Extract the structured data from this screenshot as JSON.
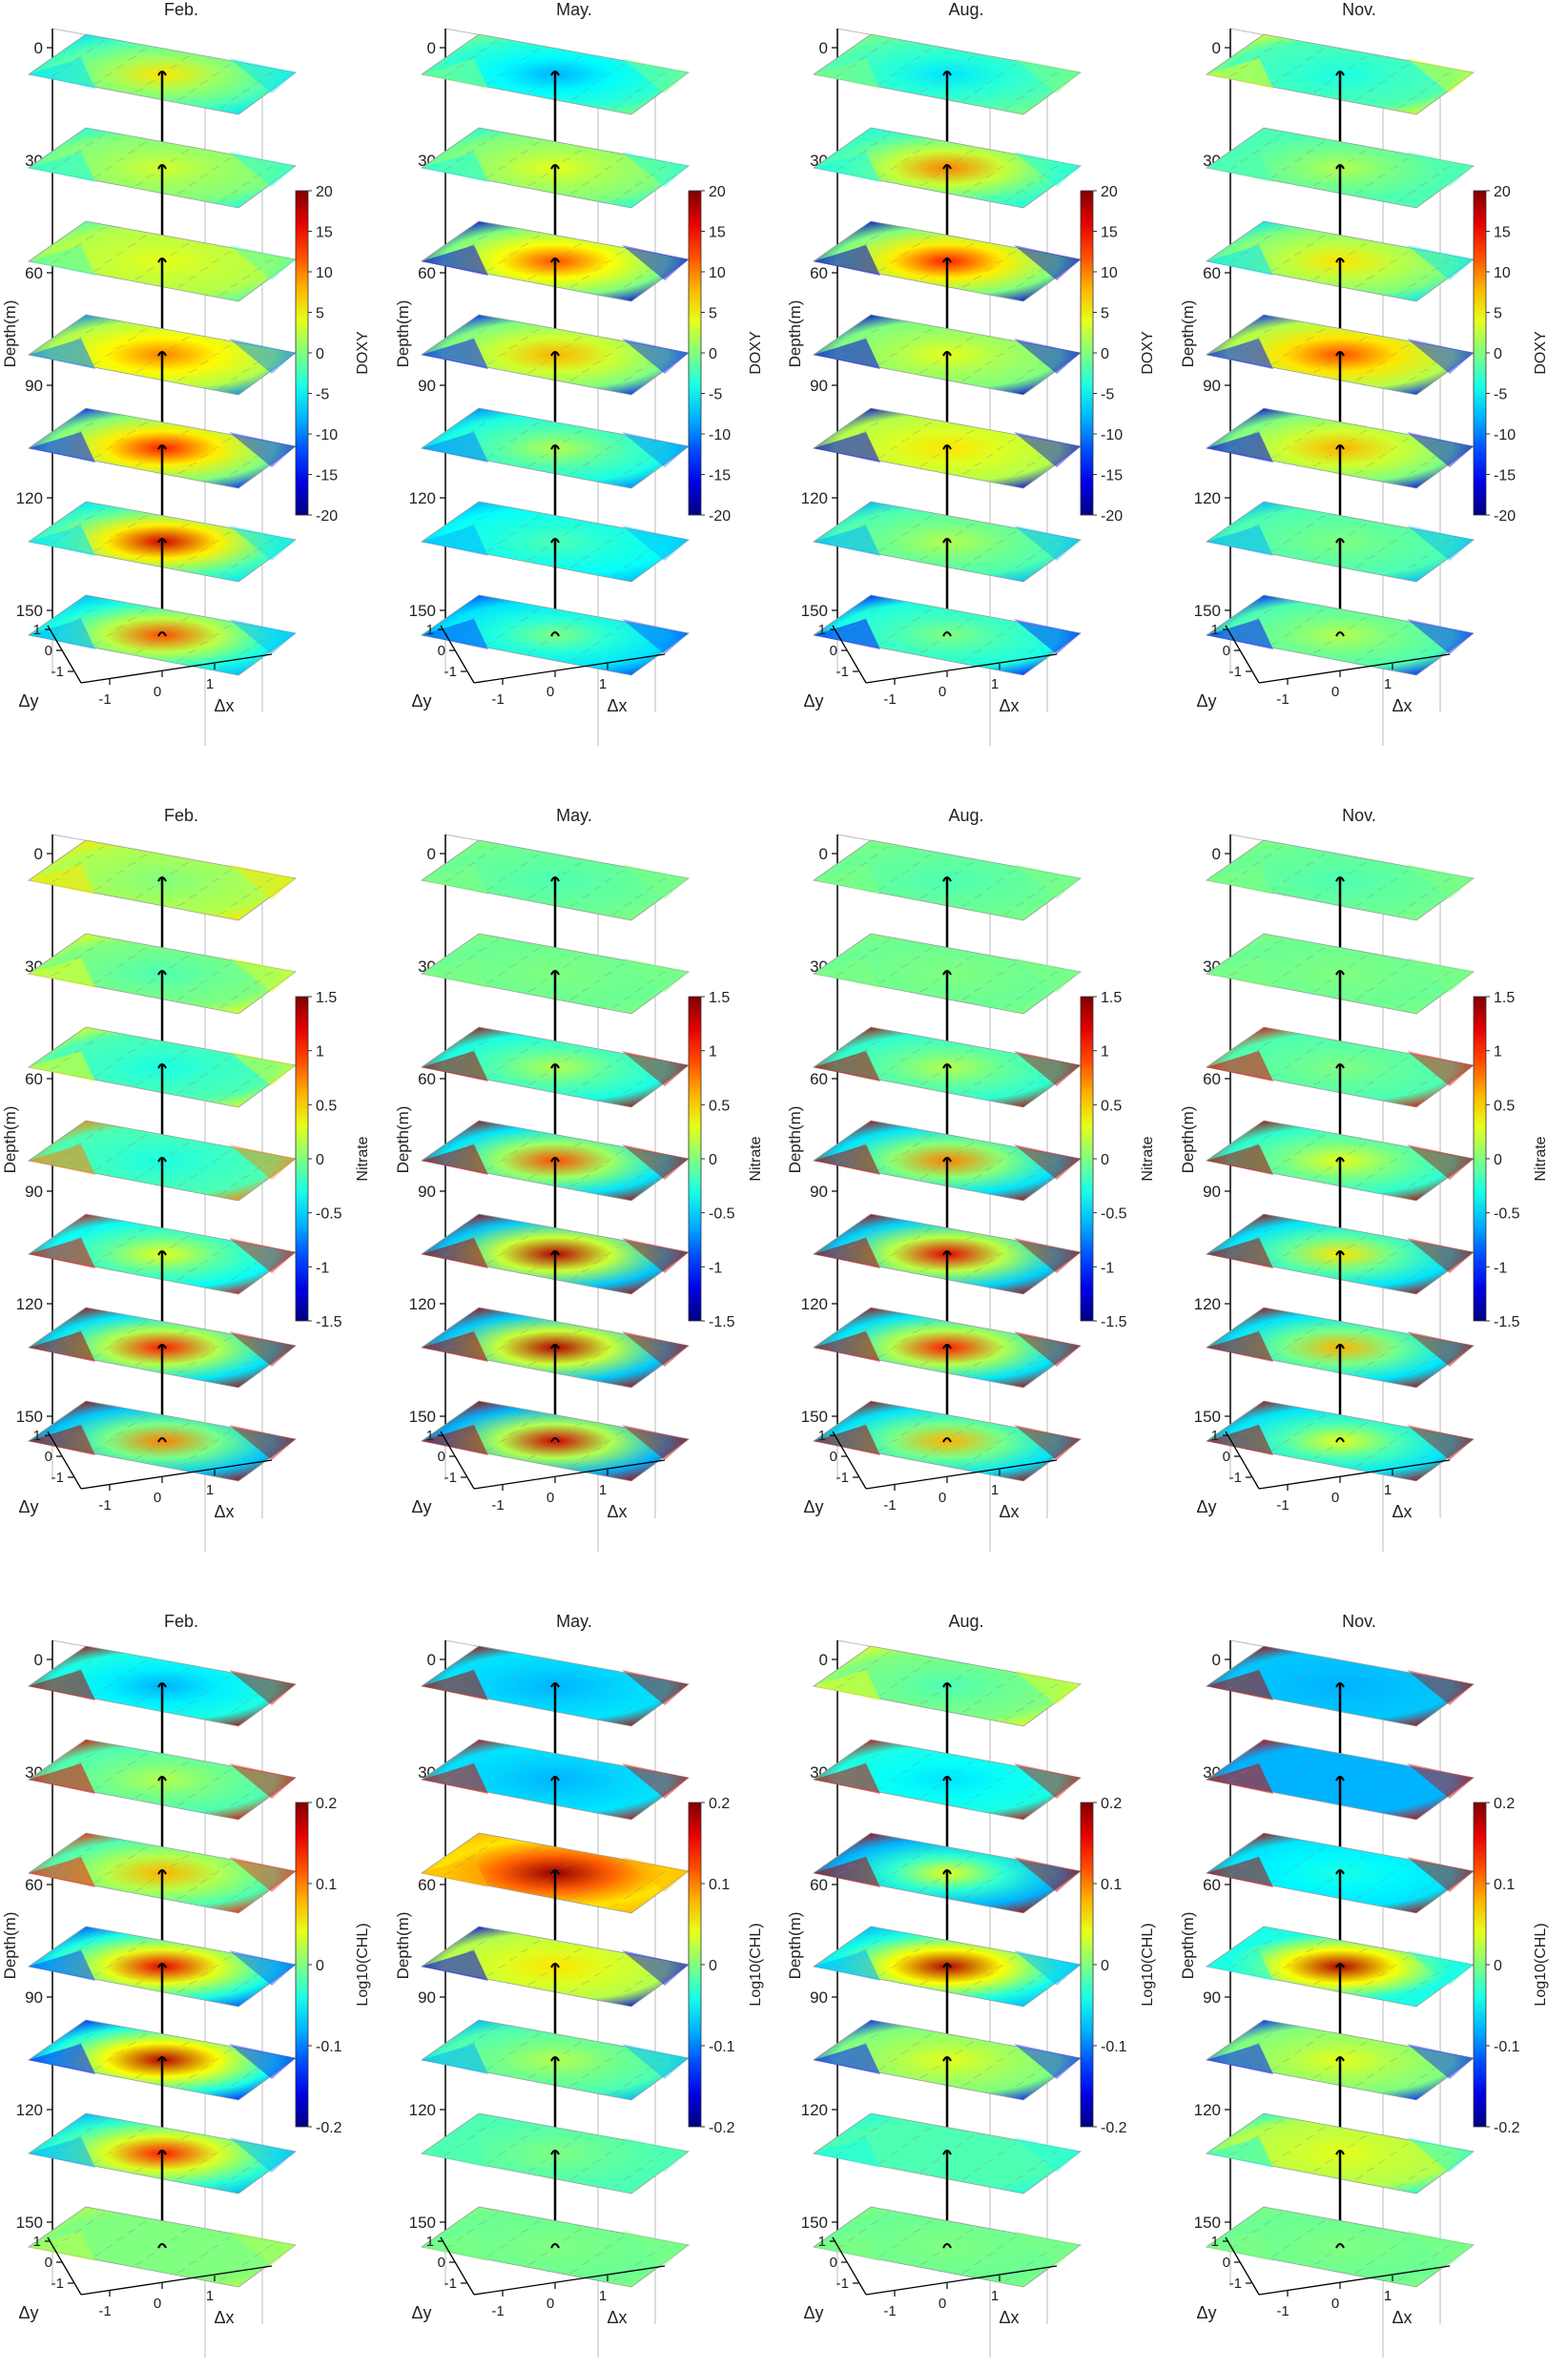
{
  "figure": {
    "rows": [
      {
        "variable": "DOXY",
        "colorbar": {
          "ticks": [
            "20",
            "15",
            "10",
            "5",
            "0",
            "-5",
            "-10",
            "-15",
            "-20"
          ],
          "range": [
            -20,
            20
          ]
        },
        "panels": [
          {
            "title": "Feb.",
            "layers": [
              {
                "bg": 0.45,
                "center": 0.65,
                "rim": 0.35,
                "sw": 0.1
              },
              {
                "bg": 0.5,
                "center": 0.58,
                "rim": 0.4,
                "sw": 0.15
              },
              {
                "bg": 0.55,
                "center": 0.6,
                "rim": 0.45,
                "sw": 0.2
              },
              {
                "bg": 0.55,
                "center": 0.75,
                "rim": 0.25,
                "sw": 0.3
              },
              {
                "bg": 0.5,
                "center": 0.85,
                "rim": 0.15,
                "sw": 0.5
              },
              {
                "bg": 0.45,
                "center": 0.92,
                "rim": 0.35,
                "sw": 0.2
              },
              {
                "bg": 0.4,
                "center": 0.8,
                "rim": 0.3,
                "sw": 0.1
              }
            ]
          },
          {
            "title": "May.",
            "layers": [
              {
                "bg": 0.42,
                "center": 0.3,
                "rim": 0.5,
                "sw": 0.1
              },
              {
                "bg": 0.5,
                "center": 0.6,
                "rim": 0.4,
                "sw": 0.1
              },
              {
                "bg": 0.5,
                "center": 0.8,
                "rim": 0.1,
                "sw": 0.6
              },
              {
                "bg": 0.5,
                "center": 0.7,
                "rim": 0.15,
                "sw": 0.5
              },
              {
                "bg": 0.4,
                "center": 0.55,
                "rim": 0.25,
                "sw": 0.3
              },
              {
                "bg": 0.38,
                "center": 0.45,
                "rim": 0.3,
                "sw": 0.3
              },
              {
                "bg": 0.35,
                "center": 0.5,
                "rim": 0.2,
                "sw": 0.3
              }
            ]
          },
          {
            "title": "Aug.",
            "layers": [
              {
                "bg": 0.45,
                "center": 0.35,
                "rim": 0.5,
                "sw": 0.1
              },
              {
                "bg": 0.45,
                "center": 0.75,
                "rim": 0.4,
                "sw": 0.1
              },
              {
                "bg": 0.5,
                "center": 0.85,
                "rim": 0.08,
                "sw": 0.6
              },
              {
                "bg": 0.5,
                "center": 0.6,
                "rim": 0.1,
                "sw": 0.6
              },
              {
                "bg": 0.55,
                "center": 0.65,
                "rim": 0.1,
                "sw": 0.5
              },
              {
                "bg": 0.45,
                "center": 0.55,
                "rim": 0.3,
                "sw": 0.3
              },
              {
                "bg": 0.4,
                "center": 0.5,
                "rim": 0.15,
                "sw": 0.4
              }
            ]
          },
          {
            "title": "Nov.",
            "layers": [
              {
                "bg": 0.45,
                "center": 0.4,
                "rim": 0.6,
                "sw": 0.1
              },
              {
                "bg": 0.45,
                "center": 0.55,
                "rim": 0.45,
                "sw": 0.1
              },
              {
                "bg": 0.5,
                "center": 0.65,
                "rim": 0.35,
                "sw": 0.2
              },
              {
                "bg": 0.55,
                "center": 0.8,
                "rim": 0.15,
                "sw": 0.5
              },
              {
                "bg": 0.5,
                "center": 0.7,
                "rim": 0.1,
                "sw": 0.6
              },
              {
                "bg": 0.45,
                "center": 0.5,
                "rim": 0.3,
                "sw": 0.3
              },
              {
                "bg": 0.45,
                "center": 0.55,
                "rim": 0.15,
                "sw": 0.3
              }
            ]
          }
        ]
      },
      {
        "variable": "Nitrate",
        "colorbar": {
          "ticks": [
            "1.5",
            "1",
            "0.5",
            "0",
            "-0.5",
            "-1",
            "-1.5"
          ],
          "range": [
            -1.5,
            1.5
          ]
        },
        "panels": [
          {
            "title": "Feb.",
            "layers": [
              {
                "bg": 0.55,
                "center": 0.5,
                "rim": 0.65,
                "sw": 0.1
              },
              {
                "bg": 0.5,
                "center": 0.45,
                "rim": 0.6,
                "sw": 0.15
              },
              {
                "bg": 0.45,
                "center": 0.4,
                "rim": 0.6,
                "sw": 0.2
              },
              {
                "bg": 0.45,
                "center": 0.4,
                "rim": 0.75,
                "sw": 0.3
              },
              {
                "bg": 0.38,
                "center": 0.6,
                "rim": 0.9,
                "sw": 0.1
              },
              {
                "bg": 0.35,
                "center": 0.85,
                "rim": 0.95,
                "sw": 0.1
              },
              {
                "bg": 0.32,
                "center": 0.75,
                "rim": 0.95,
                "sw": 0.1
              }
            ]
          },
          {
            "title": "May.",
            "layers": [
              {
                "bg": 0.48,
                "center": 0.45,
                "rim": 0.5,
                "sw": 0.1
              },
              {
                "bg": 0.48,
                "center": 0.5,
                "rim": 0.5,
                "sw": 0.1
              },
              {
                "bg": 0.4,
                "center": 0.55,
                "rim": 0.95,
                "sw": 0.1
              },
              {
                "bg": 0.35,
                "center": 0.8,
                "rim": 0.95,
                "sw": 0.1
              },
              {
                "bg": 0.32,
                "center": 0.95,
                "rim": 0.95,
                "sw": 0.1
              },
              {
                "bg": 0.32,
                "center": 0.95,
                "rim": 0.95,
                "sw": 0.1
              },
              {
                "bg": 0.3,
                "center": 0.92,
                "rim": 0.95,
                "sw": 0.1
              }
            ]
          },
          {
            "title": "Aug.",
            "layers": [
              {
                "bg": 0.48,
                "center": 0.45,
                "rim": 0.5,
                "sw": 0.1
              },
              {
                "bg": 0.48,
                "center": 0.5,
                "rim": 0.5,
                "sw": 0.1
              },
              {
                "bg": 0.42,
                "center": 0.55,
                "rim": 0.95,
                "sw": 0.1
              },
              {
                "bg": 0.35,
                "center": 0.75,
                "rim": 0.95,
                "sw": 0.1
              },
              {
                "bg": 0.33,
                "center": 0.9,
                "rim": 0.95,
                "sw": 0.1
              },
              {
                "bg": 0.35,
                "center": 0.85,
                "rim": 0.95,
                "sw": 0.1
              },
              {
                "bg": 0.35,
                "center": 0.7,
                "rim": 0.95,
                "sw": 0.1
              }
            ]
          },
          {
            "title": "Nov.",
            "layers": [
              {
                "bg": 0.48,
                "center": 0.45,
                "rim": 0.5,
                "sw": 0.1
              },
              {
                "bg": 0.48,
                "center": 0.5,
                "rim": 0.5,
                "sw": 0.1
              },
              {
                "bg": 0.45,
                "center": 0.5,
                "rim": 0.9,
                "sw": 0.1
              },
              {
                "bg": 0.42,
                "center": 0.6,
                "rim": 0.95,
                "sw": 0.1
              },
              {
                "bg": 0.35,
                "center": 0.65,
                "rim": 0.95,
                "sw": 0.1
              },
              {
                "bg": 0.35,
                "center": 0.7,
                "rim": 0.95,
                "sw": 0.1
              },
              {
                "bg": 0.35,
                "center": 0.6,
                "rim": 0.95,
                "sw": 0.1
              }
            ]
          }
        ]
      },
      {
        "variable": "Log10(CHL)",
        "colorbar": {
          "ticks": [
            "0.2",
            "0.1",
            "0",
            "-0.1",
            "-0.2"
          ],
          "range": [
            -0.2,
            0.2
          ]
        },
        "panels": [
          {
            "title": "Feb.",
            "layers": [
              {
                "bg": 0.4,
                "center": 0.3,
                "rim": 0.95,
                "sw": 0.1
              },
              {
                "bg": 0.45,
                "center": 0.55,
                "rim": 0.9,
                "sw": 0.1
              },
              {
                "bg": 0.45,
                "center": 0.7,
                "rim": 0.85,
                "sw": 0.1
              },
              {
                "bg": 0.4,
                "center": 0.9,
                "rim": 0.2,
                "sw": 0.3
              },
              {
                "bg": 0.4,
                "center": 0.95,
                "rim": 0.15,
                "sw": 0.3
              },
              {
                "bg": 0.42,
                "center": 0.85,
                "rim": 0.3,
                "sw": 0.2
              },
              {
                "bg": 0.5,
                "center": 0.5,
                "rim": 0.55,
                "sw": 0.2
              }
            ]
          },
          {
            "title": "May.",
            "layers": [
              {
                "bg": 0.35,
                "center": 0.3,
                "rim": 0.95,
                "sw": 0.1
              },
              {
                "bg": 0.35,
                "center": 0.3,
                "rim": 0.92,
                "sw": 0.1
              },
              {
                "bg": 0.65,
                "center": 0.98,
                "rim": 0.7,
                "sw": 0.1
              },
              {
                "bg": 0.55,
                "center": 0.65,
                "rim": 0.1,
                "sw": 0.4
              },
              {
                "bg": 0.45,
                "center": 0.55,
                "rim": 0.3,
                "sw": 0.2
              },
              {
                "bg": 0.45,
                "center": 0.5,
                "rim": 0.45,
                "sw": 0.2
              },
              {
                "bg": 0.48,
                "center": 0.5,
                "rim": 0.5,
                "sw": 0.2
              }
            ]
          },
          {
            "title": "Aug.",
            "layers": [
              {
                "bg": 0.5,
                "center": 0.45,
                "rim": 0.6,
                "sw": 0.1
              },
              {
                "bg": 0.4,
                "center": 0.35,
                "rim": 0.92,
                "sw": 0.1
              },
              {
                "bg": 0.3,
                "center": 0.6,
                "rim": 0.95,
                "sw": 0.1
              },
              {
                "bg": 0.4,
                "center": 0.95,
                "rim": 0.3,
                "sw": 0.2
              },
              {
                "bg": 0.5,
                "center": 0.6,
                "rim": 0.15,
                "sw": 0.4
              },
              {
                "bg": 0.45,
                "center": 0.45,
                "rim": 0.4,
                "sw": 0.2
              },
              {
                "bg": 0.48,
                "center": 0.5,
                "rim": 0.5,
                "sw": 0.2
              }
            ]
          },
          {
            "title": "Nov.",
            "layers": [
              {
                "bg": 0.32,
                "center": 0.3,
                "rim": 0.95,
                "sw": 0.1
              },
              {
                "bg": 0.3,
                "center": 0.3,
                "rim": 0.92,
                "sw": 0.1
              },
              {
                "bg": 0.35,
                "center": 0.4,
                "rim": 0.95,
                "sw": 0.1
              },
              {
                "bg": 0.4,
                "center": 0.95,
                "rim": 0.4,
                "sw": 0.1
              },
              {
                "bg": 0.5,
                "center": 0.6,
                "rim": 0.15,
                "sw": 0.3
              },
              {
                "bg": 0.55,
                "center": 0.6,
                "rim": 0.4,
                "sw": 0.2
              },
              {
                "bg": 0.48,
                "center": 0.5,
                "rim": 0.5,
                "sw": 0.2
              }
            ]
          }
        ]
      }
    ],
    "depth_axis": {
      "label": "Depth(m)",
      "ticks": [
        "0",
        "30",
        "60",
        "90",
        "120",
        "150"
      ]
    },
    "x_axis": {
      "label": "Δx",
      "ticks": [
        "-1",
        "0",
        "1"
      ]
    },
    "y_axis": {
      "label": "Δy",
      "ticks": [
        "-1",
        "0",
        "1"
      ]
    }
  },
  "chart_data": {
    "type": "heatmap",
    "layout": "3 rows x 4 columns of 3D stacked slice plots",
    "months": [
      "Feb.",
      "May.",
      "Aug.",
      "Nov."
    ],
    "variables": [
      "DOXY",
      "Nitrate",
      "Log10(CHL)"
    ],
    "ranges": {
      "DOXY": [
        -20,
        20
      ],
      "Nitrate": [
        -1.5,
        1.5
      ],
      "Log10(CHL)": [
        -0.2,
        0.2
      ]
    },
    "depth_ticks": [
      0,
      30,
      60,
      90,
      120,
      150
    ],
    "dx_ticks": [
      -1,
      0,
      1
    ],
    "dy_ticks": [
      -1,
      0,
      1
    ],
    "zlabel": "Depth(m)",
    "xlabel": "Δx",
    "ylabel": "Δy",
    "colormap": "jet"
  }
}
